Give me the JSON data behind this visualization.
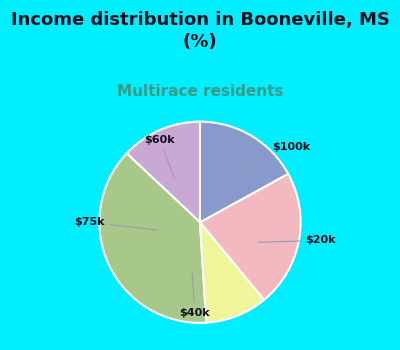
{
  "title": "Income distribution in Booneville, MS\n(%)",
  "subtitle": "Multirace residents",
  "title_fontsize": 13,
  "subtitle_fontsize": 11,
  "title_color": "#111122",
  "subtitle_color": "#3a9a8a",
  "labels": [
    "$100k",
    "$20k",
    "$40k",
    "$75k",
    "$60k"
  ],
  "sizes": [
    13,
    38,
    10,
    22,
    17
  ],
  "colors": [
    "#c9a8d4",
    "#a8c88a",
    "#eef59a",
    "#f4b8c0",
    "#8899cc"
  ],
  "background_outer": "#00eeff",
  "startangle": 90,
  "wedge_edgecolor": "white",
  "wedge_linewidth": 1.5
}
